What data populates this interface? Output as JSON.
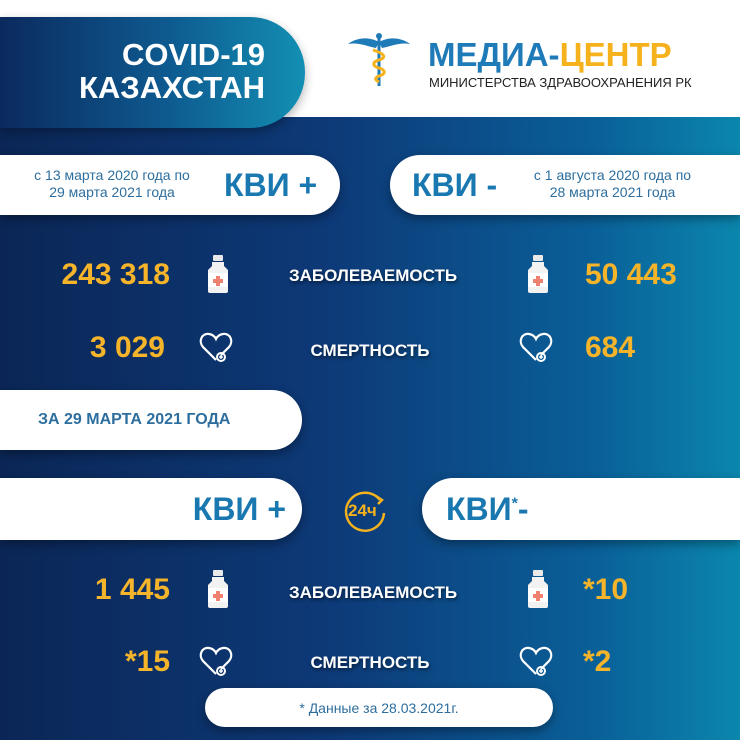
{
  "header": {
    "title_line1": "COVID-19",
    "title_line2": "КАЗАХСТАН",
    "brand_part1": "МЕДИА-",
    "brand_part2": "ЦЕНТР",
    "brand_subtitle": "МИНИСТЕРСТВА ЗДРАВООХРАНЕНИЯ РК",
    "logo_icon": "caduceus-icon"
  },
  "colors": {
    "accent_blue": "#1a78b0",
    "number_orange": "#f5b42a",
    "brand_orange": "#f5b21d"
  },
  "cumulative": {
    "positive": {
      "period_line1": "с 13 марта 2020 года по",
      "period_line2": "29 марта 2021 года",
      "label": "КВИ +",
      "cases": "243 318",
      "deaths": "3 029"
    },
    "negative": {
      "period_line1": "с 1 августа 2020 года по",
      "period_line2": "28 марта 2021 года",
      "label": "КВИ -",
      "cases": "50 443",
      "deaths": "684"
    }
  },
  "labels": {
    "cases": "ЗАБОЛЕВАЕМОСТЬ",
    "deaths": "СМЕРТНОСТЬ"
  },
  "daily": {
    "date_label": "ЗА 29 МАРТА 2021 ГОДА",
    "clock_label": "24ч",
    "positive": {
      "label": "КВИ +",
      "cases": "1 445",
      "deaths": "*15"
    },
    "negative": {
      "label_main": "КВИ",
      "label_star": "*",
      "label_sign": "-",
      "cases": "*10",
      "deaths": "*2"
    }
  },
  "footnote": "* Данные за 28.03.2021г."
}
